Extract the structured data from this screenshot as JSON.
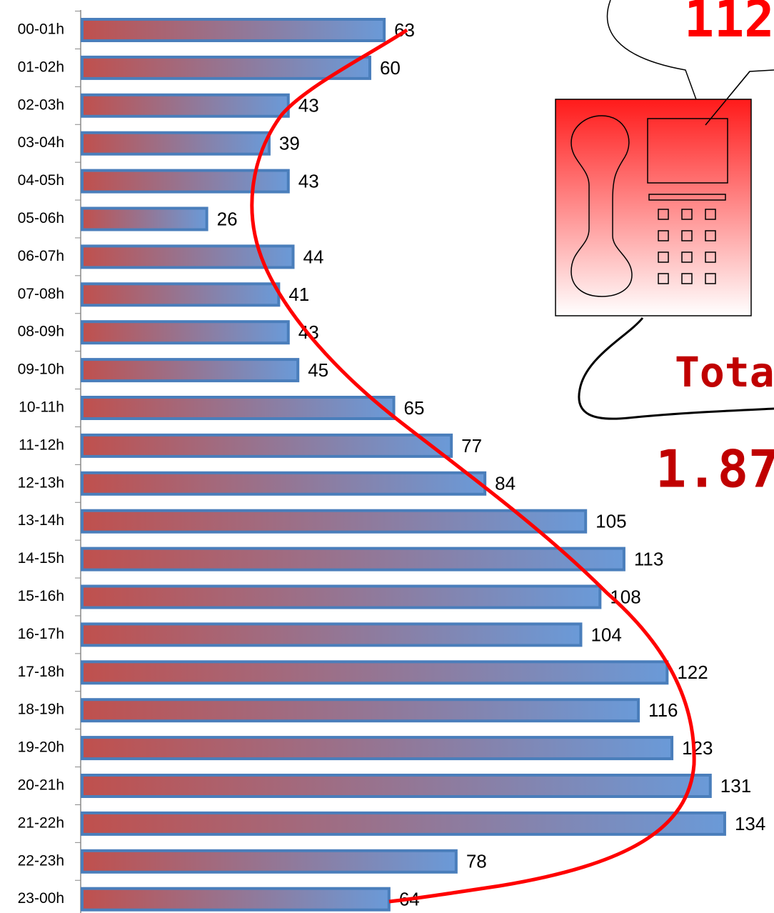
{
  "chart_data": {
    "type": "bar",
    "orientation": "horizontal",
    "categories": [
      "00-01h",
      "01-02h",
      "02-03h",
      "03-04h",
      "04-05h",
      "05-06h",
      "06-07h",
      "07-08h",
      "08-09h",
      "09-10h",
      "10-11h",
      "11-12h",
      "12-13h",
      "13-14h",
      "14-15h",
      "15-16h",
      "16-17h",
      "17-18h",
      "18-19h",
      "19-20h",
      "20-21h",
      "21-22h",
      "22-23h",
      "23-00h"
    ],
    "values": [
      63,
      60,
      43,
      39,
      43,
      26,
      44,
      41,
      43,
      45,
      65,
      77,
      84,
      105,
      113,
      108,
      104,
      122,
      116,
      123,
      131,
      134,
      78,
      64
    ],
    "color": "#6a9ad8",
    "annotations": [
      "112",
      "Tota",
      "1.87"
    ]
  }
}
